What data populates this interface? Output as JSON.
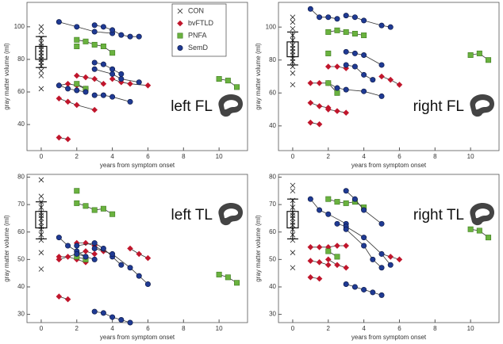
{
  "chart_data": [
    {
      "type": "line",
      "title": "left FL",
      "title_corner": "bottom-right",
      "xlabel": "years from symptom onset",
      "ylabel": "gray matter volume (ml)",
      "xlim": [
        -0.8,
        11.6
      ],
      "xticks": [
        0,
        2,
        4,
        6,
        8,
        10
      ],
      "ylim": [
        24,
        115
      ],
      "yticks": [
        40,
        60,
        80,
        100
      ],
      "legend": "top-right",
      "box": {
        "whisker_low": 75,
        "box_low": 80,
        "box_high": 88,
        "whisker_high": 94
      },
      "series": [
        {
          "name": "CON",
          "color": "#222222",
          "marker": "x",
          "x": [
            0,
            0,
            0,
            0,
            0,
            0,
            0,
            0,
            0,
            0,
            0,
            0,
            0,
            0
          ],
          "values": [
            62,
            70,
            73,
            76,
            78,
            80,
            82,
            84,
            86,
            88,
            90,
            93,
            97,
            100
          ]
        },
        {
          "name": "bvFTLD",
          "color": "#c0162c",
          "marker": "diamond",
          "x": [
            1,
            1.5,
            null,
            1,
            1.5,
            2,
            3,
            null,
            1,
            1.5,
            2,
            2.5,
            null,
            2,
            2.5,
            3,
            3.5,
            null,
            4,
            4.5,
            5,
            6
          ],
          "values": [
            32,
            31,
            null,
            56,
            54,
            52,
            49,
            null,
            64,
            65,
            64,
            62,
            null,
            70,
            69,
            68,
            65,
            null,
            68,
            66,
            65,
            64
          ]
        },
        {
          "name": "PNFA",
          "color": "#6ab23f",
          "marker": "square",
          "x": [
            2,
            2.5,
            3,
            3.5,
            4,
            null,
            2,
            null,
            2,
            2.5,
            null,
            10,
            10.5,
            11
          ],
          "values": [
            92,
            91,
            89,
            88,
            84,
            null,
            88,
            null,
            65,
            62,
            null,
            68,
            67,
            63
          ]
        },
        {
          "name": "SemD",
          "color": "#1f3a93",
          "marker": "circle",
          "x": [
            1,
            2,
            3,
            4,
            null,
            3,
            3.5,
            4,
            4.5,
            5,
            5.5,
            null,
            3,
            3.5,
            4,
            4.5,
            null,
            3,
            4,
            4.5,
            5.5,
            null,
            3,
            3.5,
            4,
            5,
            null,
            1,
            1.5,
            2,
            2.5
          ],
          "values": [
            103,
            100,
            97,
            96,
            null,
            101,
            100,
            98,
            95,
            94,
            94,
            null,
            78,
            77,
            74,
            71,
            null,
            74,
            71,
            68,
            66,
            null,
            58,
            58,
            57,
            54,
            null,
            64,
            62,
            61,
            60
          ]
        }
      ]
    },
    {
      "type": "line",
      "title": "right FL",
      "title_corner": "bottom-right",
      "xlabel": "years from symptom onset",
      "ylabel": "gray matter volume (ml)",
      "xlim": [
        -0.8,
        11.6
      ],
      "xticks": [
        0,
        2,
        4,
        6,
        8,
        10
      ],
      "ylim": [
        25,
        115
      ],
      "yticks": [
        40,
        60,
        80,
        100
      ],
      "box": {
        "whisker_low": 77,
        "box_low": 82,
        "box_high": 91,
        "whisker_high": 97
      },
      "series": [
        {
          "name": "CON",
          "color": "#222222",
          "marker": "x",
          "x": [
            0,
            0,
            0,
            0,
            0,
            0,
            0,
            0,
            0,
            0,
            0,
            0,
            0,
            0
          ],
          "values": [
            65,
            72,
            76,
            79,
            81,
            83,
            85,
            87,
            89,
            92,
            95,
            99,
            103,
            106
          ]
        },
        {
          "name": "bvFTLD",
          "color": "#c0162c",
          "marker": "diamond",
          "x": [
            1,
            1.5,
            2,
            null,
            1,
            1.5,
            null,
            1,
            1.5,
            2,
            2.5,
            null,
            2,
            2.5,
            3,
            null,
            5,
            5.5,
            6,
            null,
            2,
            2.5,
            3
          ],
          "values": [
            54,
            52,
            51,
            null,
            42,
            41,
            null,
            66,
            66,
            66,
            63,
            null,
            76,
            76,
            75,
            null,
            70,
            68,
            65,
            null,
            50,
            49,
            48
          ]
        },
        {
          "name": "PNFA",
          "color": "#6ab23f",
          "marker": "square",
          "x": [
            2,
            2.5,
            3,
            3.5,
            4,
            null,
            2,
            null,
            2,
            2.5,
            null,
            10,
            10.5,
            11
          ],
          "values": [
            97,
            98,
            97,
            96,
            95,
            null,
            84,
            null,
            66,
            60,
            null,
            83,
            84,
            80
          ]
        },
        {
          "name": "SemD",
          "color": "#1f3a93",
          "marker": "circle",
          "x": [
            1,
            1.5,
            2,
            2.5,
            null,
            3,
            3.5,
            4,
            5,
            5.5,
            null,
            3,
            3.5,
            4,
            5,
            null,
            3,
            3.5,
            4,
            4.5,
            null,
            2.5,
            3,
            4,
            5
          ],
          "values": [
            111,
            106,
            106,
            105,
            null,
            107,
            106,
            104,
            101,
            100,
            null,
            85,
            84,
            83,
            77,
            null,
            77,
            76,
            71,
            68,
            null,
            63,
            62,
            61,
            58
          ]
        }
      ]
    },
    {
      "type": "line",
      "title": "left TL",
      "title_corner": "top-right",
      "xlabel": "years from symptom onset",
      "ylabel": "gray matter volume (ml)",
      "xlim": [
        -0.8,
        11.6
      ],
      "xticks": [
        0,
        2,
        4,
        6,
        8,
        10
      ],
      "ylim": [
        27,
        81
      ],
      "yticks": [
        30,
        40,
        50,
        60,
        70,
        80
      ],
      "box": {
        "whisker_low": 57.5,
        "box_low": 61.5,
        "box_high": 67.5,
        "whisker_high": 71
      },
      "series": [
        {
          "name": "CON",
          "color": "#222222",
          "marker": "x",
          "x": [
            0,
            0,
            0,
            0,
            0,
            0,
            0,
            0,
            0,
            0,
            0,
            0,
            0,
            0
          ],
          "values": [
            46.5,
            52.5,
            57,
            59,
            61,
            62,
            63.5,
            65,
            66,
            67,
            69,
            71,
            73,
            79
          ]
        },
        {
          "name": "bvFTLD",
          "color": "#c0162c",
          "marker": "diamond",
          "x": [
            1,
            1.5,
            null,
            1,
            1.5,
            2,
            2.5,
            null,
            1,
            2,
            2.5,
            3,
            null,
            2,
            2.5,
            3,
            3.5,
            null,
            5,
            5.5,
            6
          ],
          "values": [
            36.5,
            35.5,
            null,
            51,
            51,
            50,
            49,
            null,
            50,
            52,
            53,
            52,
            null,
            56,
            56,
            55,
            53,
            null,
            54,
            52,
            50.5
          ]
        },
        {
          "name": "PNFA",
          "color": "#6ab23f",
          "marker": "square",
          "x": [
            2,
            null,
            2,
            2.5,
            3,
            3.5,
            4,
            null,
            2,
            2.5,
            null,
            10,
            10.5,
            11
          ],
          "values": [
            75,
            null,
            70.5,
            69.5,
            68,
            68.5,
            66.5,
            null,
            51,
            50,
            null,
            44.5,
            43.5,
            41.5
          ]
        },
        {
          "name": "SemD",
          "color": "#1f3a93",
          "marker": "circle",
          "x": [
            1,
            1.5,
            2,
            2.5,
            null,
            2,
            3,
            3.5,
            4,
            4.5,
            null,
            3,
            4,
            5,
            5.5,
            6,
            null,
            3,
            3.5,
            4,
            4.5,
            5,
            null,
            2,
            2.5,
            3
          ],
          "values": [
            58,
            55,
            53,
            51,
            null,
            55,
            56,
            54,
            51,
            48,
            null,
            54,
            52,
            47,
            44,
            41,
            null,
            31,
            30.5,
            29,
            28,
            27,
            null,
            52,
            51,
            50
          ]
        }
      ]
    },
    {
      "type": "line",
      "title": "right TL",
      "title_corner": "top-right",
      "xlabel": "years from symptom onset",
      "ylabel": "gray matter volume (ml)",
      "xlim": [
        -0.8,
        11.6
      ],
      "xticks": [
        0,
        2,
        4,
        6,
        8,
        10
      ],
      "ylim": [
        27,
        81
      ],
      "yticks": [
        30,
        40,
        50,
        60,
        70,
        80
      ],
      "box": {
        "whisker_low": 57.5,
        "box_low": 61.5,
        "box_high": 67.5,
        "whisker_high": 72
      },
      "series": [
        {
          "name": "CON",
          "color": "#222222",
          "marker": "x",
          "x": [
            0,
            0,
            0,
            0,
            0,
            0,
            0,
            0,
            0,
            0,
            0,
            0,
            0,
            0
          ],
          "values": [
            47,
            52.5,
            57,
            59,
            61,
            62.5,
            63.5,
            65,
            66,
            67,
            69,
            71.5,
            75,
            77
          ]
        },
        {
          "name": "bvFTLD",
          "color": "#c0162c",
          "marker": "diamond",
          "x": [
            1,
            1.5,
            2,
            2.5,
            3,
            null,
            1,
            1.5,
            2,
            null,
            1,
            1.5,
            null,
            5,
            5.5,
            6,
            null,
            2,
            2.5,
            3
          ],
          "values": [
            54.5,
            54.5,
            54.5,
            55,
            55,
            null,
            49.5,
            49,
            48,
            null,
            43.5,
            43,
            null,
            52,
            51,
            50,
            null,
            50,
            48,
            47
          ]
        },
        {
          "name": "PNFA",
          "color": "#6ab23f",
          "marker": "square",
          "x": [
            2,
            2.5,
            3,
            3.5,
            4,
            null,
            2,
            2.5,
            null,
            10,
            10.5,
            11
          ],
          "values": [
            72,
            71,
            70.5,
            71,
            69,
            null,
            53,
            51,
            null,
            61,
            60.5,
            58
          ]
        },
        {
          "name": "SemD",
          "color": "#1f3a93",
          "marker": "circle",
          "x": [
            1,
            1.5,
            2,
            3,
            null,
            3,
            3.5,
            4,
            5,
            null,
            2.5,
            3,
            4,
            5,
            5.5,
            null,
            3,
            3.5,
            4,
            4.5,
            5,
            null,
            3,
            4,
            4.5,
            5
          ],
          "values": [
            72,
            68,
            66.5,
            63,
            null,
            75,
            72,
            68,
            63,
            null,
            63,
            62,
            58,
            52,
            48,
            null,
            41,
            40,
            39,
            38,
            37,
            null,
            61,
            55,
            50,
            47
          ]
        }
      ]
    }
  ]
}
